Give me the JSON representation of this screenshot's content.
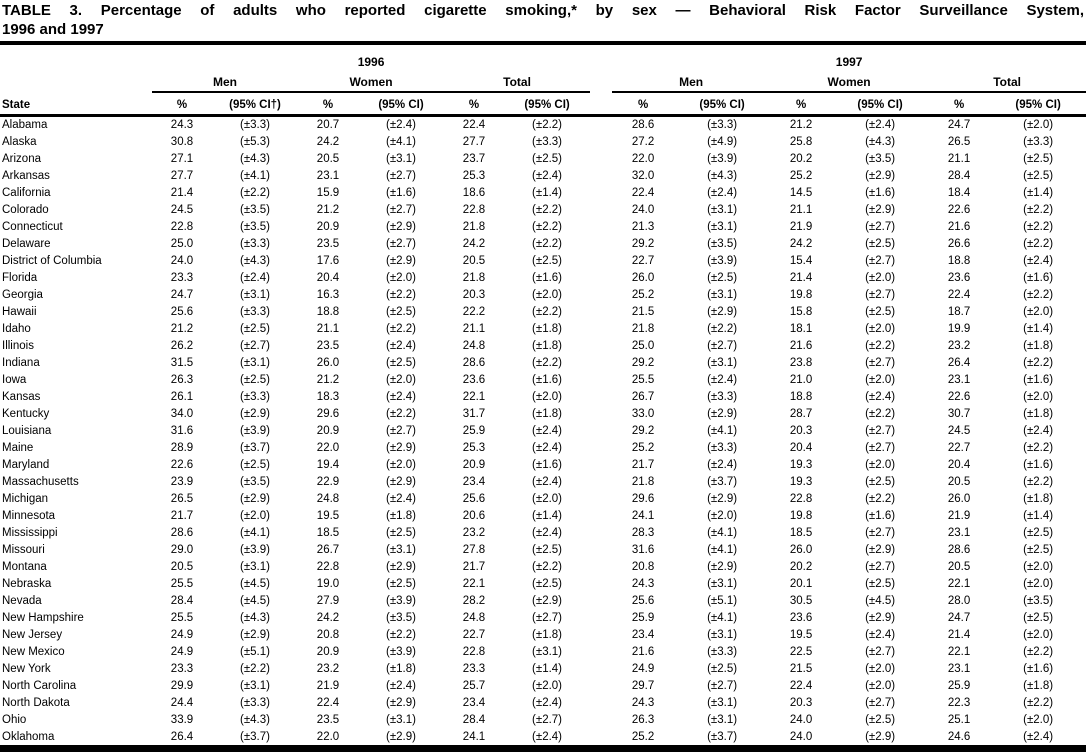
{
  "title": {
    "line1": "TABLE 3. Percentage of adults who reported cigarette smoking,* by sex — Behavioral Risk Factor Surveillance System,",
    "line2": "1996 and 1997"
  },
  "table": {
    "state_header": "State",
    "year_groups": [
      {
        "year": "1996",
        "subgroups": [
          "Men",
          "Women",
          "Total"
        ],
        "col_headers": [
          "%",
          "(95% CI†)",
          "%",
          "(95% CI)",
          "%",
          "(95% CI)"
        ]
      },
      {
        "year": "1997",
        "subgroups": [
          "Men",
          "Women",
          "Total"
        ],
        "col_headers": [
          "%",
          "(95% CI)",
          "%",
          "(95% CI)",
          "%",
          "(95% CI)"
        ]
      }
    ],
    "rows": [
      {
        "state": "Alabama",
        "values": [
          "24.3",
          "(±3.3)",
          "20.7",
          "(±2.4)",
          "22.4",
          "(±2.2)",
          "28.6",
          "(±3.3)",
          "21.2",
          "(±2.4)",
          "24.7",
          "(±2.0)"
        ]
      },
      {
        "state": "Alaska",
        "values": [
          "30.8",
          "(±5.3)",
          "24.2",
          "(±4.1)",
          "27.7",
          "(±3.3)",
          "27.2",
          "(±4.9)",
          "25.8",
          "(±4.3)",
          "26.5",
          "(±3.3)"
        ]
      },
      {
        "state": "Arizona",
        "values": [
          "27.1",
          "(±4.3)",
          "20.5",
          "(±3.1)",
          "23.7",
          "(±2.5)",
          "22.0",
          "(±3.9)",
          "20.2",
          "(±3.5)",
          "21.1",
          "(±2.5)"
        ]
      },
      {
        "state": "Arkansas",
        "values": [
          "27.7",
          "(±4.1)",
          "23.1",
          "(±2.7)",
          "25.3",
          "(±2.4)",
          "32.0",
          "(±4.3)",
          "25.2",
          "(±2.9)",
          "28.4",
          "(±2.5)"
        ]
      },
      {
        "state": "California",
        "values": [
          "21.4",
          "(±2.2)",
          "15.9",
          "(±1.6)",
          "18.6",
          "(±1.4)",
          "22.4",
          "(±2.4)",
          "14.5",
          "(±1.6)",
          "18.4",
          "(±1.4)"
        ]
      },
      {
        "state": "Colorado",
        "values": [
          "24.5",
          "(±3.5)",
          "21.2",
          "(±2.7)",
          "22.8",
          "(±2.2)",
          "24.0",
          "(±3.1)",
          "21.1",
          "(±2.9)",
          "22.6",
          "(±2.2)"
        ]
      },
      {
        "state": "Connecticut",
        "values": [
          "22.8",
          "(±3.5)",
          "20.9",
          "(±2.9)",
          "21.8",
          "(±2.2)",
          "21.3",
          "(±3.1)",
          "21.9",
          "(±2.7)",
          "21.6",
          "(±2.2)"
        ]
      },
      {
        "state": "Delaware",
        "values": [
          "25.0",
          "(±3.3)",
          "23.5",
          "(±2.7)",
          "24.2",
          "(±2.2)",
          "29.2",
          "(±3.5)",
          "24.2",
          "(±2.5)",
          "26.6",
          "(±2.2)"
        ]
      },
      {
        "state": "District of Columbia",
        "values": [
          "24.0",
          "(±4.3)",
          "17.6",
          "(±2.9)",
          "20.5",
          "(±2.5)",
          "22.7",
          "(±3.9)",
          "15.4",
          "(±2.7)",
          "18.8",
          "(±2.4)"
        ]
      },
      {
        "state": "Florida",
        "values": [
          "23.3",
          "(±2.4)",
          "20.4",
          "(±2.0)",
          "21.8",
          "(±1.6)",
          "26.0",
          "(±2.5)",
          "21.4",
          "(±2.0)",
          "23.6",
          "(±1.6)"
        ]
      },
      {
        "state": "Georgia",
        "values": [
          "24.7",
          "(±3.1)",
          "16.3",
          "(±2.2)",
          "20.3",
          "(±2.0)",
          "25.2",
          "(±3.1)",
          "19.8",
          "(±2.7)",
          "22.4",
          "(±2.2)"
        ]
      },
      {
        "state": "Hawaii",
        "values": [
          "25.6",
          "(±3.3)",
          "18.8",
          "(±2.5)",
          "22.2",
          "(±2.2)",
          "21.5",
          "(±2.9)",
          "15.8",
          "(±2.5)",
          "18.7",
          "(±2.0)"
        ]
      },
      {
        "state": "Idaho",
        "values": [
          "21.2",
          "(±2.5)",
          "21.1",
          "(±2.2)",
          "21.1",
          "(±1.8)",
          "21.8",
          "(±2.2)",
          "18.1",
          "(±2.0)",
          "19.9",
          "(±1.4)"
        ]
      },
      {
        "state": "Illinois",
        "values": [
          "26.2",
          "(±2.7)",
          "23.5",
          "(±2.4)",
          "24.8",
          "(±1.8)",
          "25.0",
          "(±2.7)",
          "21.6",
          "(±2.2)",
          "23.2",
          "(±1.8)"
        ]
      },
      {
        "state": "Indiana",
        "values": [
          "31.5",
          "(±3.1)",
          "26.0",
          "(±2.5)",
          "28.6",
          "(±2.2)",
          "29.2",
          "(±3.1)",
          "23.8",
          "(±2.7)",
          "26.4",
          "(±2.2)"
        ]
      },
      {
        "state": "Iowa",
        "values": [
          "26.3",
          "(±2.5)",
          "21.2",
          "(±2.0)",
          "23.6",
          "(±1.6)",
          "25.5",
          "(±2.4)",
          "21.0",
          "(±2.0)",
          "23.1",
          "(±1.6)"
        ]
      },
      {
        "state": "Kansas",
        "values": [
          "26.1",
          "(±3.3)",
          "18.3",
          "(±2.4)",
          "22.1",
          "(±2.0)",
          "26.7",
          "(±3.3)",
          "18.8",
          "(±2.4)",
          "22.6",
          "(±2.0)"
        ]
      },
      {
        "state": "Kentucky",
        "values": [
          "34.0",
          "(±2.9)",
          "29.6",
          "(±2.2)",
          "31.7",
          "(±1.8)",
          "33.0",
          "(±2.9)",
          "28.7",
          "(±2.2)",
          "30.7",
          "(±1.8)"
        ]
      },
      {
        "state": "Louisiana",
        "values": [
          "31.6",
          "(±3.9)",
          "20.9",
          "(±2.7)",
          "25.9",
          "(±2.4)",
          "29.2",
          "(±4.1)",
          "20.3",
          "(±2.7)",
          "24.5",
          "(±2.4)"
        ]
      },
      {
        "state": "Maine",
        "values": [
          "28.9",
          "(±3.7)",
          "22.0",
          "(±2.9)",
          "25.3",
          "(±2.4)",
          "25.2",
          "(±3.3)",
          "20.4",
          "(±2.7)",
          "22.7",
          "(±2.2)"
        ]
      },
      {
        "state": "Maryland",
        "values": [
          "22.6",
          "(±2.5)",
          "19.4",
          "(±2.0)",
          "20.9",
          "(±1.6)",
          "21.7",
          "(±2.4)",
          "19.3",
          "(±2.0)",
          "20.4",
          "(±1.6)"
        ]
      },
      {
        "state": "Massachusetts",
        "values": [
          "23.9",
          "(±3.5)",
          "22.9",
          "(±2.9)",
          "23.4",
          "(±2.4)",
          "21.8",
          "(±3.7)",
          "19.3",
          "(±2.5)",
          "20.5",
          "(±2.2)"
        ]
      },
      {
        "state": "Michigan",
        "values": [
          "26.5",
          "(±2.9)",
          "24.8",
          "(±2.4)",
          "25.6",
          "(±2.0)",
          "29.6",
          "(±2.9)",
          "22.8",
          "(±2.2)",
          "26.0",
          "(±1.8)"
        ]
      },
      {
        "state": "Minnesota",
        "values": [
          "21.7",
          "(±2.0)",
          "19.5",
          "(±1.8)",
          "20.6",
          "(±1.4)",
          "24.1",
          "(±2.0)",
          "19.8",
          "(±1.6)",
          "21.9",
          "(±1.4)"
        ]
      },
      {
        "state": "Mississippi",
        "values": [
          "28.6",
          "(±4.1)",
          "18.5",
          "(±2.5)",
          "23.2",
          "(±2.4)",
          "28.3",
          "(±4.1)",
          "18.5",
          "(±2.7)",
          "23.1",
          "(±2.5)"
        ]
      },
      {
        "state": "Missouri",
        "values": [
          "29.0",
          "(±3.9)",
          "26.7",
          "(±3.1)",
          "27.8",
          "(±2.5)",
          "31.6",
          "(±4.1)",
          "26.0",
          "(±2.9)",
          "28.6",
          "(±2.5)"
        ]
      },
      {
        "state": "Montana",
        "values": [
          "20.5",
          "(±3.1)",
          "22.8",
          "(±2.9)",
          "21.7",
          "(±2.2)",
          "20.8",
          "(±2.9)",
          "20.2",
          "(±2.7)",
          "20.5",
          "(±2.0)"
        ]
      },
      {
        "state": "Nebraska",
        "values": [
          "25.5",
          "(±4.5)",
          "19.0",
          "(±2.5)",
          "22.1",
          "(±2.5)",
          "24.3",
          "(±3.1)",
          "20.1",
          "(±2.5)",
          "22.1",
          "(±2.0)"
        ]
      },
      {
        "state": "Nevada",
        "values": [
          "28.4",
          "(±4.5)",
          "27.9",
          "(±3.9)",
          "28.2",
          "(±2.9)",
          "25.6",
          "(±5.1)",
          "30.5",
          "(±4.5)",
          "28.0",
          "(±3.5)"
        ]
      },
      {
        "state": "New Hampshire",
        "values": [
          "25.5",
          "(±4.3)",
          "24.2",
          "(±3.5)",
          "24.8",
          "(±2.7)",
          "25.9",
          "(±4.1)",
          "23.6",
          "(±2.9)",
          "24.7",
          "(±2.5)"
        ]
      },
      {
        "state": "New Jersey",
        "values": [
          "24.9",
          "(±2.9)",
          "20.8",
          "(±2.2)",
          "22.7",
          "(±1.8)",
          "23.4",
          "(±3.1)",
          "19.5",
          "(±2.4)",
          "21.4",
          "(±2.0)"
        ]
      },
      {
        "state": "New Mexico",
        "values": [
          "24.9",
          "(±5.1)",
          "20.9",
          "(±3.9)",
          "22.8",
          "(±3.1)",
          "21.6",
          "(±3.3)",
          "22.5",
          "(±2.7)",
          "22.1",
          "(±2.2)"
        ]
      },
      {
        "state": "New York",
        "values": [
          "23.3",
          "(±2.2)",
          "23.2",
          "(±1.8)",
          "23.3",
          "(±1.4)",
          "24.9",
          "(±2.5)",
          "21.5",
          "(±2.0)",
          "23.1",
          "(±1.6)"
        ]
      },
      {
        "state": "North Carolina",
        "values": [
          "29.9",
          "(±3.1)",
          "21.9",
          "(±2.4)",
          "25.7",
          "(±2.0)",
          "29.7",
          "(±2.7)",
          "22.4",
          "(±2.0)",
          "25.9",
          "(±1.8)"
        ]
      },
      {
        "state": "North Dakota",
        "values": [
          "24.4",
          "(±3.3)",
          "22.4",
          "(±2.9)",
          "23.4",
          "(±2.4)",
          "24.3",
          "(±3.1)",
          "20.3",
          "(±2.7)",
          "22.3",
          "(±2.2)"
        ]
      },
      {
        "state": "Ohio",
        "values": [
          "33.9",
          "(±4.3)",
          "23.5",
          "(±3.1)",
          "28.4",
          "(±2.7)",
          "26.3",
          "(±3.1)",
          "24.0",
          "(±2.5)",
          "25.1",
          "(±2.0)"
        ]
      },
      {
        "state": "Oklahoma",
        "values": [
          "26.4",
          "(±3.7)",
          "22.0",
          "(±2.9)",
          "24.1",
          "(±2.4)",
          "25.2",
          "(±3.7)",
          "24.0",
          "(±2.9)",
          "24.6",
          "(±2.4)"
        ]
      }
    ]
  }
}
